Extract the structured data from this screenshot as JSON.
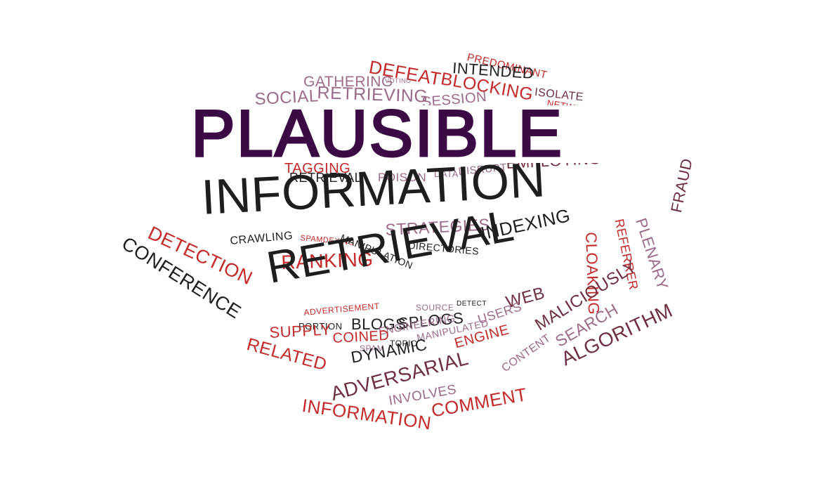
{
  "title": {
    "text": "PLAUSIBLE",
    "color": "#3b0a45"
  },
  "colors": {
    "red": "#c42a2a",
    "black": "#1e1e1e",
    "mauve": "#9c6b8a",
    "maroon": "#6e3040",
    "darkred": "#8f2020"
  },
  "words": [
    {
      "text": "PREDOMINANT",
      "color": "red"
    },
    {
      "text": "DEFEAT",
      "color": "red"
    },
    {
      "text": "INTENDED",
      "color": "black"
    },
    {
      "text": "GATHERING",
      "color": "mauve"
    },
    {
      "text": "VOTING",
      "color": "mauve"
    },
    {
      "text": "BLOCKING",
      "color": "red"
    },
    {
      "text": "ISOLATE",
      "color": "maroon"
    },
    {
      "text": "SOCIAL",
      "color": "mauve"
    },
    {
      "text": "RETRIEVING",
      "color": "mauve"
    },
    {
      "text": "SESSION",
      "color": "mauve"
    },
    {
      "text": "NETWORKS",
      "color": "red"
    },
    {
      "text": "TAGGING",
      "color": "red"
    },
    {
      "text": "EMPLOYING",
      "color": "maroon"
    },
    {
      "text": "RETRIEVAL",
      "color": "black"
    },
    {
      "text": "POISON",
      "color": "mauve"
    },
    {
      "text": "DATA",
      "color": "mauve"
    },
    {
      "text": "DISRUPT",
      "color": "mauve"
    },
    {
      "text": "INFORMATION",
      "color": "black"
    },
    {
      "text": "DETECTION",
      "color": "red"
    },
    {
      "text": "STRATEGIES",
      "color": "mauve"
    },
    {
      "text": "CRAWLING",
      "color": "black"
    },
    {
      "text": "SPAMDEXING",
      "color": "red"
    },
    {
      "text": "MANIPULATION",
      "color": "black"
    },
    {
      "text": "DIRECTORIES",
      "color": "black"
    },
    {
      "text": "INDEXING",
      "color": "black"
    },
    {
      "text": "CONFERENCE",
      "color": "black"
    },
    {
      "text": "RANKING",
      "color": "red"
    },
    {
      "text": "RETRIEVAL",
      "color": "black"
    },
    {
      "text": "REFERRER",
      "color": "red"
    },
    {
      "text": "PLENARY",
      "color": "mauve"
    },
    {
      "text": "FRAUD",
      "color": "maroon"
    },
    {
      "text": "CLOAKING",
      "color": "red"
    },
    {
      "text": "ADVERTISEMENT",
      "color": "red"
    },
    {
      "text": "SOURCE",
      "color": "mauve"
    },
    {
      "text": "DETECT",
      "color": "black"
    },
    {
      "text": "WEB",
      "color": "maroon"
    },
    {
      "text": "MALICIOUSLY",
      "color": "maroon"
    },
    {
      "text": "SEARCH",
      "color": "mauve"
    },
    {
      "text": "ALGORITHM",
      "color": "maroon"
    },
    {
      "text": "PORTION",
      "color": "black"
    },
    {
      "text": "BLOGS",
      "color": "black"
    },
    {
      "text": "SPLOGS",
      "color": "black"
    },
    {
      "text": "USERS",
      "color": "mauve"
    },
    {
      "text": "SUPPLY",
      "color": "red"
    },
    {
      "text": "ENGINEERING",
      "color": "mauve"
    },
    {
      "text": "COINED",
      "color": "red"
    },
    {
      "text": "MANIPULATED",
      "color": "mauve"
    },
    {
      "text": "SPAM",
      "color": "mauve"
    },
    {
      "text": "TOPIC",
      "color": "black"
    },
    {
      "text": "RELATED",
      "color": "red"
    },
    {
      "text": "DYNAMIC",
      "color": "black"
    },
    {
      "text": "ENGINE",
      "color": "red"
    },
    {
      "text": "CONTENT",
      "color": "mauve"
    },
    {
      "text": "ADVERSARIAL",
      "color": "maroon"
    },
    {
      "text": "INVOLVES",
      "color": "mauve"
    },
    {
      "text": "COMMENT",
      "color": "red"
    },
    {
      "text": "INFORMATION",
      "color": "red"
    }
  ]
}
